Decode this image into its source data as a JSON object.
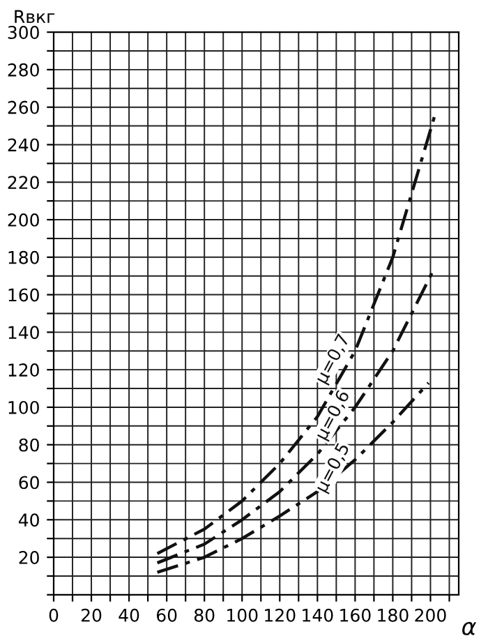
{
  "chart_data": {
    "type": "line",
    "xlabel": "α",
    "ylabel": "Rвкг",
    "xlim": [
      0,
      215
    ],
    "ylim": [
      0,
      300
    ],
    "xticks": [
      0,
      {
        "value": 10,
        "label": null
      },
      20,
      {
        "value": 30,
        "label": null
      },
      40,
      {
        "value": 50,
        "label": null
      },
      60,
      {
        "value": 70,
        "label": null
      },
      80,
      {
        "value": 90,
        "label": null
      },
      100,
      {
        "value": 110,
        "label": null
      },
      120,
      {
        "value": 130,
        "label": null
      },
      140,
      {
        "value": 150,
        "label": null
      },
      160,
      {
        "value": 170,
        "label": null
      },
      180,
      {
        "value": 190,
        "label": null
      },
      200,
      {
        "value": 210,
        "label": null
      }
    ],
    "yticks": [
      {
        "value": 0,
        "label": null
      },
      {
        "value": 10,
        "label": null
      },
      20,
      {
        "value": 30,
        "label": null
      },
      40,
      {
        "value": 50,
        "label": null
      },
      60,
      {
        "value": 70,
        "label": null
      },
      80,
      {
        "value": 90,
        "label": null
      },
      100,
      {
        "value": 110,
        "label": null
      },
      120,
      {
        "value": 130,
        "label": null
      },
      140,
      {
        "value": 150,
        "label": null
      },
      160,
      {
        "value": 170,
        "label": null
      },
      180,
      {
        "value": 190,
        "label": null
      },
      200,
      {
        "value": 210,
        "label": null
      },
      220,
      {
        "value": 230,
        "label": null
      },
      240,
      {
        "value": 250,
        "label": null
      },
      260,
      {
        "value": 270,
        "label": null
      },
      280,
      {
        "value": 290,
        "label": null
      },
      300
    ],
    "grid": true,
    "line_style": "dashdot",
    "marker": "none",
    "series": [
      {
        "name": "μ=0,7",
        "color": "#111111",
        "x": [
          55,
          80,
          100,
          120,
          140,
          160,
          180,
          203
        ],
        "values": [
          22,
          35,
          50,
          70,
          95,
          130,
          180,
          258
        ]
      },
      {
        "name": "μ=0,6",
        "color": "#111111",
        "x": [
          55,
          80,
          100,
          120,
          140,
          160,
          180,
          201
        ],
        "values": [
          17,
          27,
          40,
          55,
          75,
          100,
          130,
          172
        ]
      },
      {
        "name": "μ=0,5",
        "color": "#111111",
        "x": [
          55,
          80,
          100,
          120,
          140,
          160,
          180,
          199
        ],
        "values": [
          12,
          20,
          30,
          42,
          55,
          72,
          92,
          113
        ]
      }
    ]
  }
}
